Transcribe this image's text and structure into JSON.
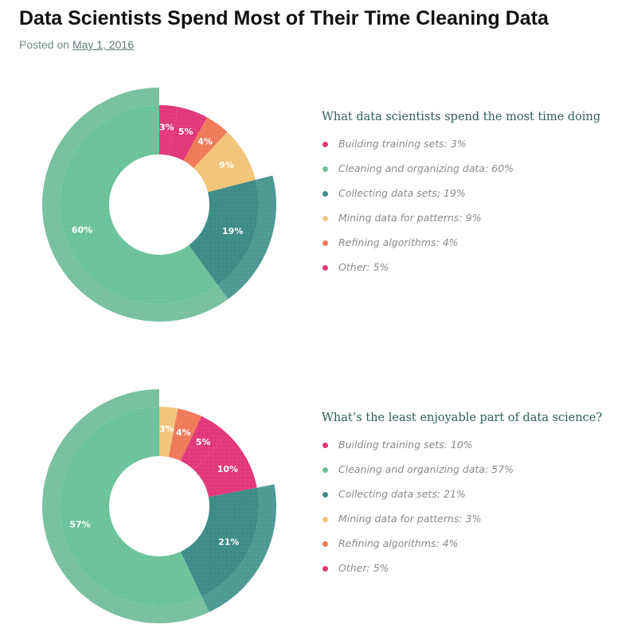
{
  "post": {
    "title": "Data Scientists Spend Most of Their Time Cleaning Data",
    "posted_prefix": "Posted on",
    "date": "May 1, 2016"
  },
  "colors": {
    "pink": "#e2387a",
    "green": "#6cc39b",
    "green_outer": "#78c0a0",
    "teal": "#3e8c88",
    "teal_outer": "#4d9a93",
    "yellow": "#f2c57b",
    "orange": "#ef7a5a",
    "title_teal": "#2d5e5a"
  },
  "chart_data": [
    {
      "type": "pie",
      "title": "What data scientists spend the most time doing",
      "categories": [
        "Building training sets",
        "Cleaning and organizing data",
        "Collecting data sets",
        "Mining data for patterns",
        "Refining algorithms",
        "Other"
      ],
      "values": [
        3,
        60,
        19,
        9,
        4,
        5
      ],
      "value_labels": [
        "3%",
        "60%",
        "19%",
        "9%",
        "4%",
        "5%"
      ],
      "legend_labels": [
        "Building training sets: 3%",
        "Cleaning and organizing data: 60%",
        "Collecting data sets; 19%",
        "Mining data for patterns: 9%",
        "Refining algorithms: 4%",
        "Other: 5%"
      ],
      "slice_order": [
        0,
        5,
        4,
        3,
        2,
        1
      ],
      "slice_colors": [
        "#e2387a",
        "#6cc39b",
        "#3e8c88",
        "#f2c57b",
        "#ef7a5a",
        "#e2387a"
      ],
      "legend_placement": "right"
    },
    {
      "type": "pie",
      "title": "What’s the least enjoyable part of data science?",
      "categories": [
        "Building training sets",
        "Cleaning and organizing data",
        "Collecting data sets",
        "Mining data for patterns",
        "Refining algorithms",
        "Other"
      ],
      "values": [
        10,
        57,
        21,
        3,
        4,
        5
      ],
      "value_labels": [
        "10%",
        "57%",
        "21%",
        "3%",
        "4%",
        "5%"
      ],
      "legend_labels": [
        "Building training sets: 10%",
        "Cleaning and organizing data: 57%",
        "Collecting data sets: 21%",
        "Mining data for patterns: 3%",
        "Refining algorithms: 4%",
        "Other: 5%"
      ],
      "slice_order": [
        3,
        4,
        5,
        0,
        2,
        1
      ],
      "slice_colors": [
        "#e2387a",
        "#6cc39b",
        "#3e8c88",
        "#f2c57b",
        "#ef7a5a",
        "#e2387a"
      ],
      "legend_placement": "right"
    }
  ]
}
